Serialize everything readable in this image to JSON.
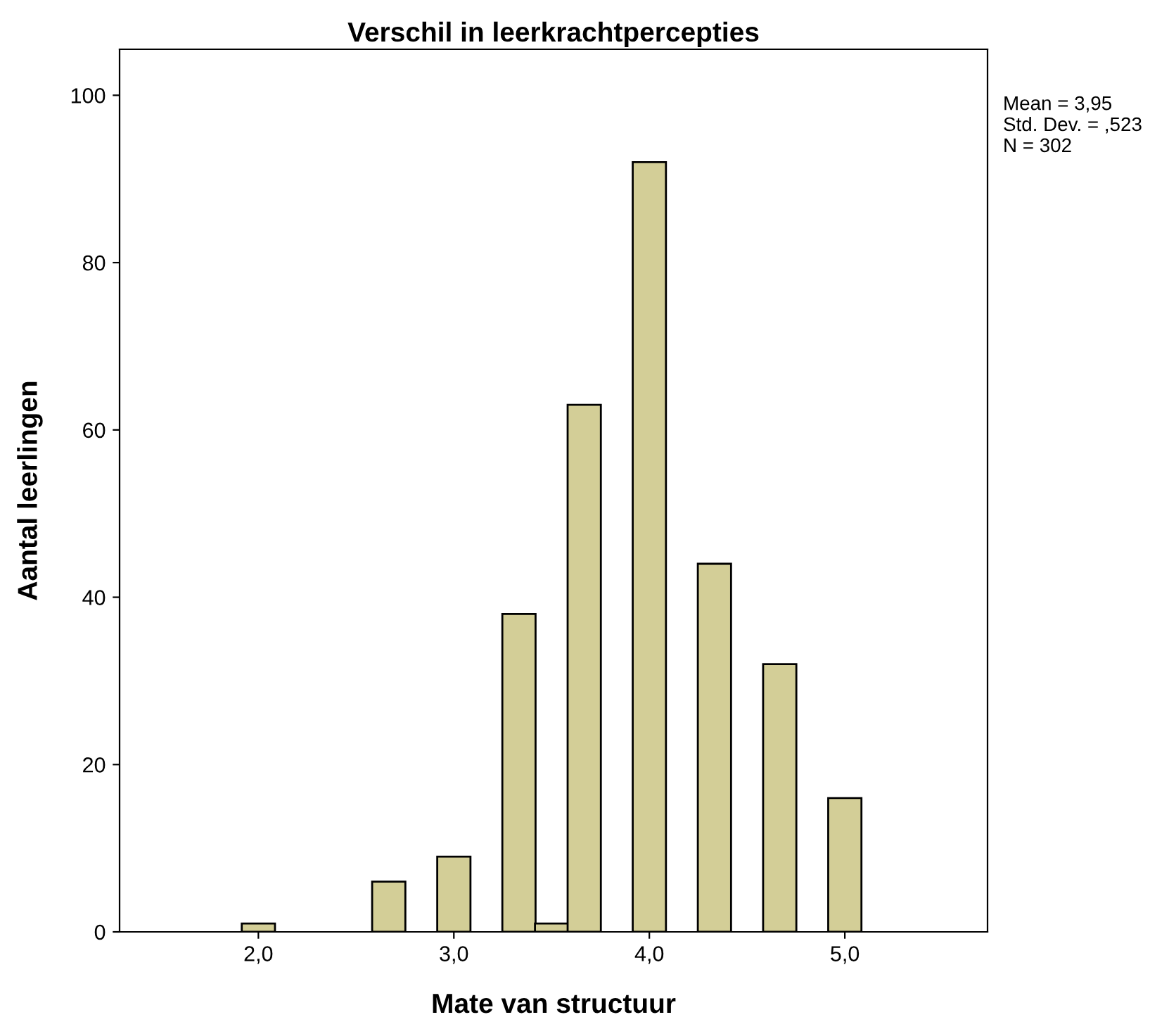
{
  "chart_data": {
    "type": "bar",
    "title": "Verschil in leerkrachtpercepties",
    "xlabel": "Mate van structuur",
    "ylabel": "Aantal leerlingen",
    "x": [
      2.0,
      2.667,
      3.0,
      3.333,
      3.5,
      3.667,
      4.0,
      4.333,
      4.667,
      5.0
    ],
    "values": [
      1,
      6,
      9,
      38,
      1,
      63,
      92,
      44,
      32,
      16
    ],
    "color": "#d3ce97",
    "xlim": [
      1.29,
      5.73
    ],
    "ylim": [
      0,
      105.5
    ],
    "xticks": [
      {
        "value": 2,
        "label": "2,0"
      },
      {
        "value": 3,
        "label": "3,0"
      },
      {
        "value": 4,
        "label": "4,0"
      },
      {
        "value": 5,
        "label": "5,0"
      }
    ],
    "yticks": [
      0,
      20,
      40,
      60,
      80,
      100
    ],
    "grid": false,
    "legend": false,
    "annotations": [
      "Mean = 3,95\nStd. Dev. = ,523\nN = 302"
    ]
  }
}
